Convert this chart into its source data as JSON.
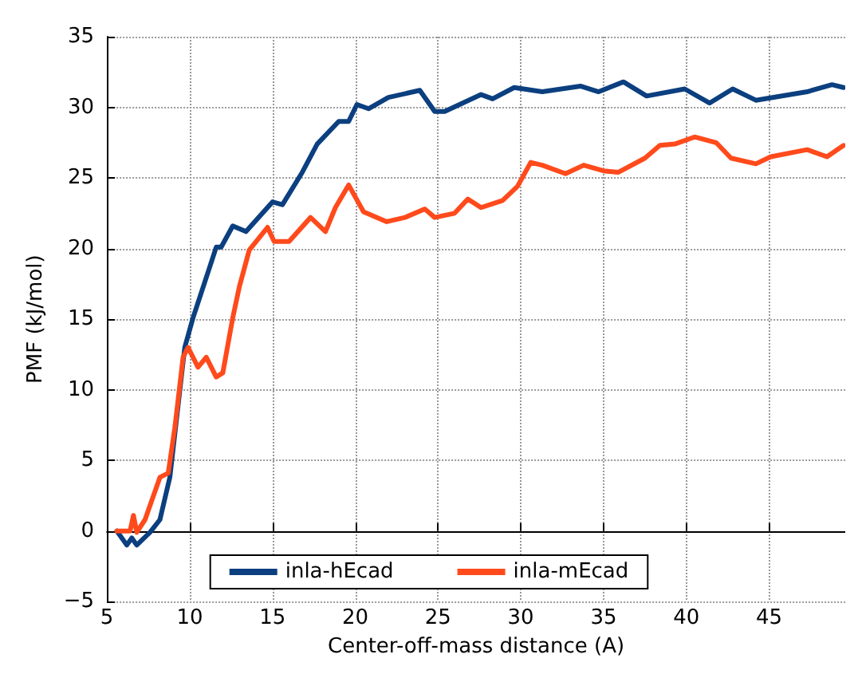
{
  "chart_data": {
    "type": "line",
    "xlabel": "Center-off-mass distance (A)",
    "ylabel": "PMF (kJ/mol)",
    "xlim": [
      5,
      49.6
    ],
    "xticks": [
      5,
      10,
      15,
      20,
      25,
      30,
      35,
      40,
      45
    ],
    "ylim": [
      -5,
      35
    ],
    "yticks": [
      -5,
      0,
      5,
      10,
      15,
      20,
      25,
      30,
      35
    ],
    "grid": true,
    "legend": "bottom",
    "line_style": "solid",
    "marker": "none",
    "series": [
      {
        "name": "inla-hEcad",
        "color": "#0b3f7f",
        "x": [
          5.6,
          6.2,
          6.5,
          6.8,
          7.6,
          8.2,
          8.8,
          9.7,
          10.2,
          11.1,
          11.6,
          11.9,
          12.6,
          13.4,
          15,
          15.6,
          16.8,
          17.7,
          19,
          19.6,
          20.1,
          20.8,
          22,
          23.9,
          24.8,
          25.4,
          27.6,
          28.3,
          29.6,
          31.3,
          33.6,
          34.7,
          36.2,
          37.6,
          39.9,
          41.4,
          42.8,
          44.2,
          47.3,
          48.8,
          49.5
        ],
        "values": [
          0,
          -1,
          -0.5,
          -1,
          -0.1,
          0.8,
          3.8,
          13,
          15.1,
          18.3,
          20.1,
          20.1,
          21.6,
          21.2,
          23.3,
          23.1,
          25.4,
          27.4,
          29,
          29,
          30.2,
          29.9,
          30.7,
          31.2,
          29.7,
          29.7,
          30.9,
          30.6,
          31.4,
          31.1,
          31.5,
          31.1,
          31.8,
          30.8,
          31.3,
          30.3,
          31.3,
          30.5,
          31.1,
          31.6,
          31.4
        ]
      },
      {
        "name": "inla-mEcad",
        "color": "#ff4a1c",
        "x": [
          5.6,
          6.4,
          6.6,
          6.8,
          7.3,
          8.2,
          8.7,
          9.1,
          9.6,
          9.9,
          10.5,
          11,
          11.6,
          12,
          12.6,
          13,
          13.6,
          14.7,
          15.1,
          16,
          17.3,
          18.2,
          18.8,
          19.6,
          20.5,
          21.9,
          23,
          24.2,
          24.8,
          26,
          26.8,
          27.6,
          28.9,
          29.8,
          30.6,
          31.3,
          32.7,
          33.8,
          35,
          35.9,
          37.5,
          38.4,
          39.3,
          40.5,
          41.8,
          42.7,
          44.2,
          45.1,
          47.3,
          48.5,
          49.5
        ],
        "values": [
          0,
          0,
          1.1,
          -0.1,
          0.8,
          3.8,
          4.1,
          7.3,
          12.3,
          13,
          11.6,
          12.3,
          10.9,
          11.2,
          15.1,
          17.3,
          19.9,
          21.5,
          20.5,
          20.5,
          22.2,
          21.2,
          22.9,
          24.5,
          22.6,
          21.9,
          22.2,
          22.8,
          22.2,
          22.5,
          23.5,
          22.9,
          23.4,
          24.4,
          26.1,
          25.9,
          25.3,
          25.9,
          25.5,
          25.4,
          26.4,
          27.3,
          27.4,
          27.9,
          27.5,
          26.4,
          26,
          26.5,
          27,
          26.5,
          27.3
        ]
      }
    ]
  }
}
